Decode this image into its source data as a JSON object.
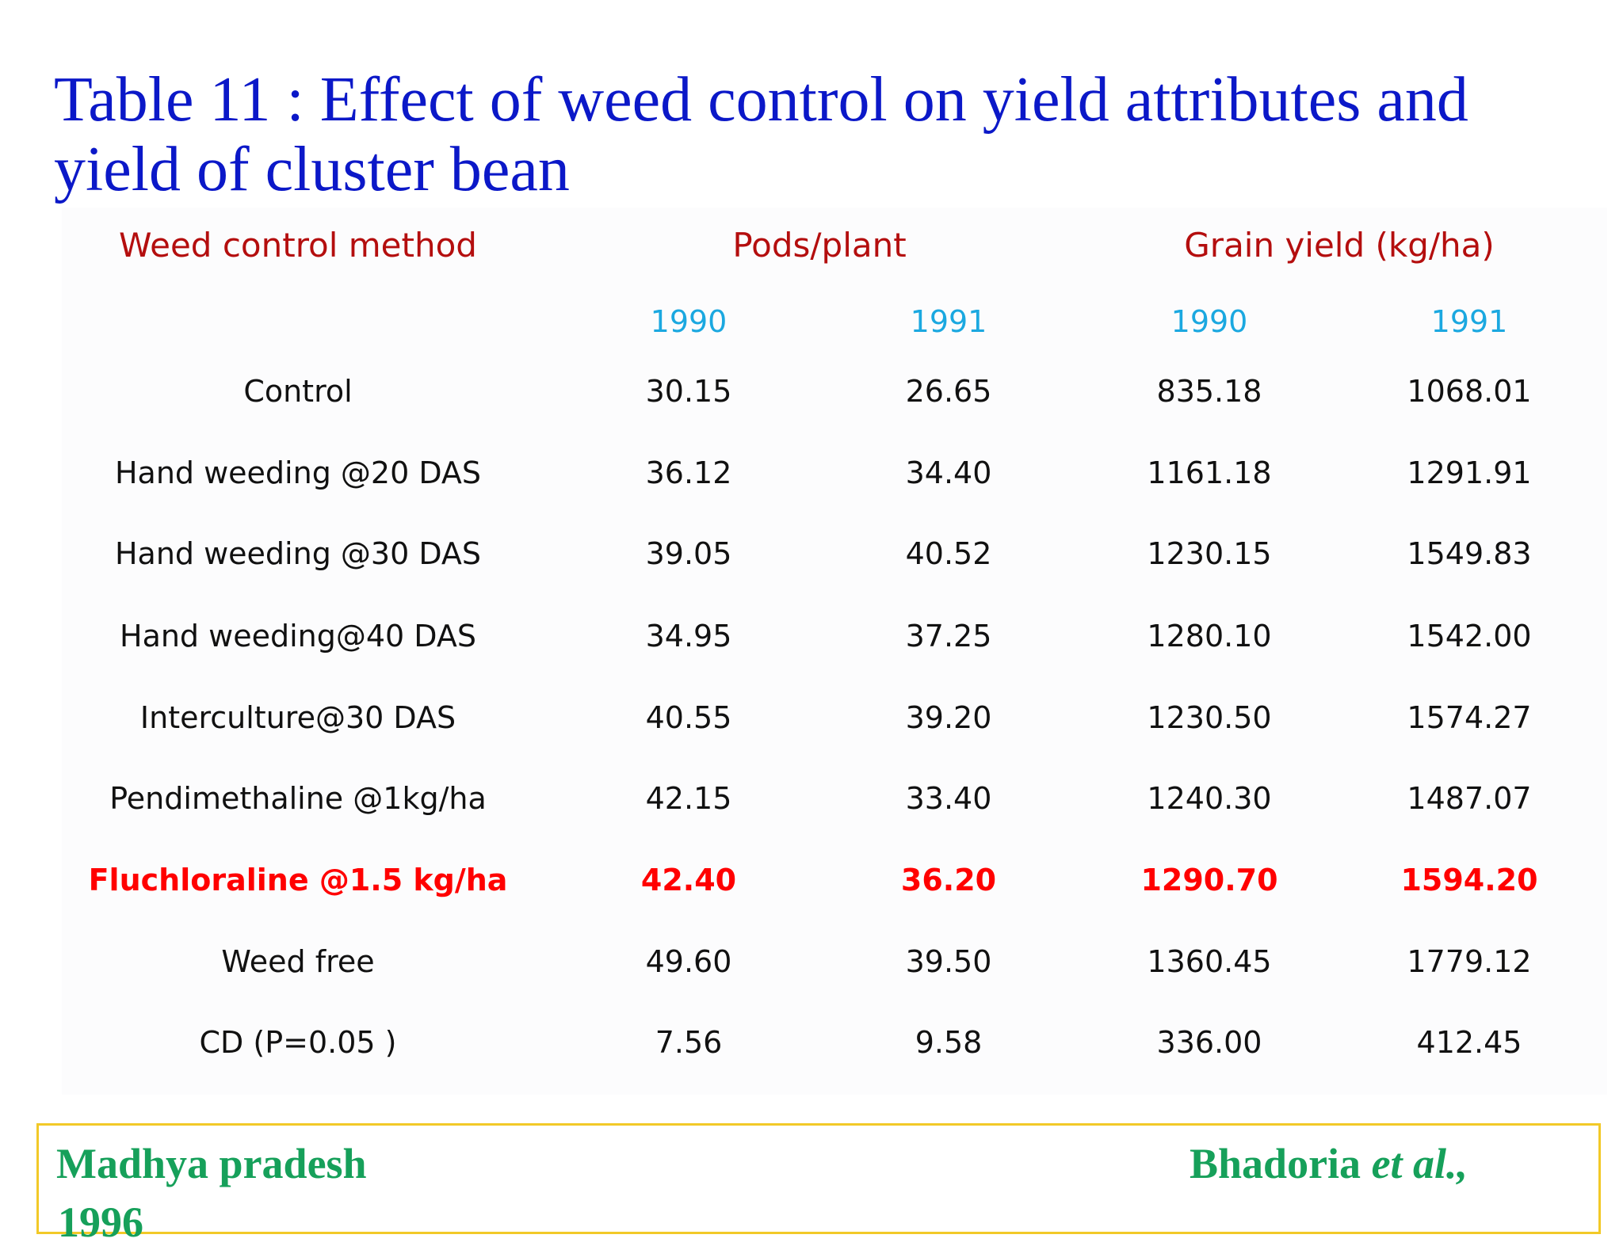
{
  "slide": {
    "title_line1": "Table 11 : Effect of weed control on yield attributes and",
    "title_line2": "yield of cluster bean"
  },
  "table": {
    "headers": {
      "method": "Weed control method",
      "pods": "Pods/plant",
      "grain": "Grain yield (kg/ha)"
    },
    "years": [
      "1990",
      "1991",
      "1990",
      "1991"
    ],
    "rows": [
      {
        "method": "Control",
        "values": [
          "30.15",
          "26.65",
          "835.18",
          "1068.01"
        ],
        "highlight": false
      },
      {
        "method": "Hand weeding @20 DAS",
        "values": [
          "36.12",
          "34.40",
          "1161.18",
          "1291.91"
        ],
        "highlight": false
      },
      {
        "method": "Hand weeding @30 DAS",
        "values": [
          "39.05",
          "40.52",
          "1230.15",
          "1549.83"
        ],
        "highlight": false
      },
      {
        "method": "Hand weeding@40 DAS",
        "values": [
          "34.95",
          "37.25",
          "1280.10",
          "1542.00"
        ],
        "highlight": false
      },
      {
        "method": "Interculture@30 DAS",
        "values": [
          "40.55",
          "39.20",
          "1230.50",
          "1574.27"
        ],
        "highlight": false
      },
      {
        "method": "Pendimethaline @1kg/ha",
        "values": [
          "42.15",
          "33.40",
          "1240.30",
          "1487.07"
        ],
        "highlight": false
      },
      {
        "method": "Fluchloraline @1.5 kg/ha",
        "values": [
          "42.40",
          "36.20",
          "1290.70",
          "1594.20"
        ],
        "highlight": true
      },
      {
        "method": "Weed free",
        "values": [
          "49.60",
          "39.50",
          "1360.45",
          "1779.12"
        ],
        "highlight": false
      },
      {
        "method": "CD (P=0.05 )",
        "values": [
          "7.56",
          "9.58",
          "336.00",
          "412.45"
        ],
        "highlight": false
      }
    ]
  },
  "footer": {
    "location": "Madhya pradesh",
    "author": "Bhadoria",
    "etal": "et al.,",
    "year": "1996"
  },
  "colors": {
    "title": "#0b18c8",
    "header": "#b40e0e",
    "year": "#1ba8e0",
    "highlight": "#ff0000",
    "footer_text": "#16a05a",
    "footer_border": "#f2c928"
  }
}
